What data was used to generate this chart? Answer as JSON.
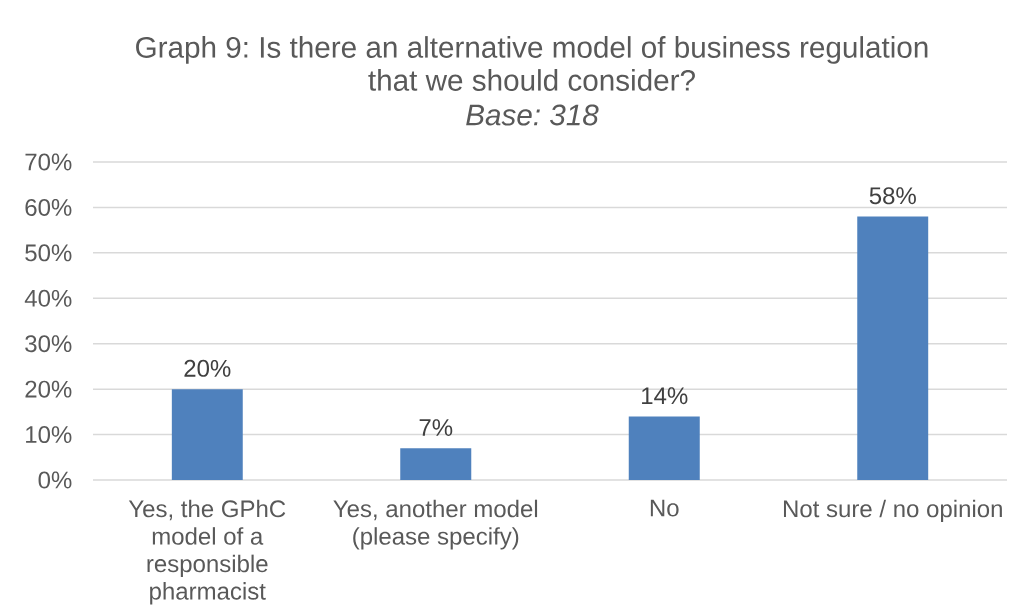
{
  "chart_data": {
    "type": "bar",
    "title": "Graph 9: Is there an alternative model of business regulation that we should consider?",
    "subtitle": "Base: 318",
    "categories": [
      "Yes, the GPhC model of a responsible pharmacist",
      "Yes, another model (please specify)",
      "No",
      "Not sure / no opinion"
    ],
    "values": [
      20,
      7,
      14,
      58
    ],
    "color": "#4f81bd",
    "value_labels": [
      "20%",
      "7%",
      "14%",
      "58%"
    ],
    "ylim": [
      0,
      70
    ],
    "yticks": [
      {
        "value": 0,
        "label": "0%"
      },
      {
        "value": 10,
        "label": "10%"
      },
      {
        "value": 20,
        "label": "20%"
      },
      {
        "value": 30,
        "label": "30%"
      },
      {
        "value": 40,
        "label": "40%"
      },
      {
        "value": 50,
        "label": "50%"
      },
      {
        "value": 60,
        "label": "60%"
      },
      {
        "value": 70,
        "label": "70%"
      }
    ],
    "grid": "y"
  }
}
